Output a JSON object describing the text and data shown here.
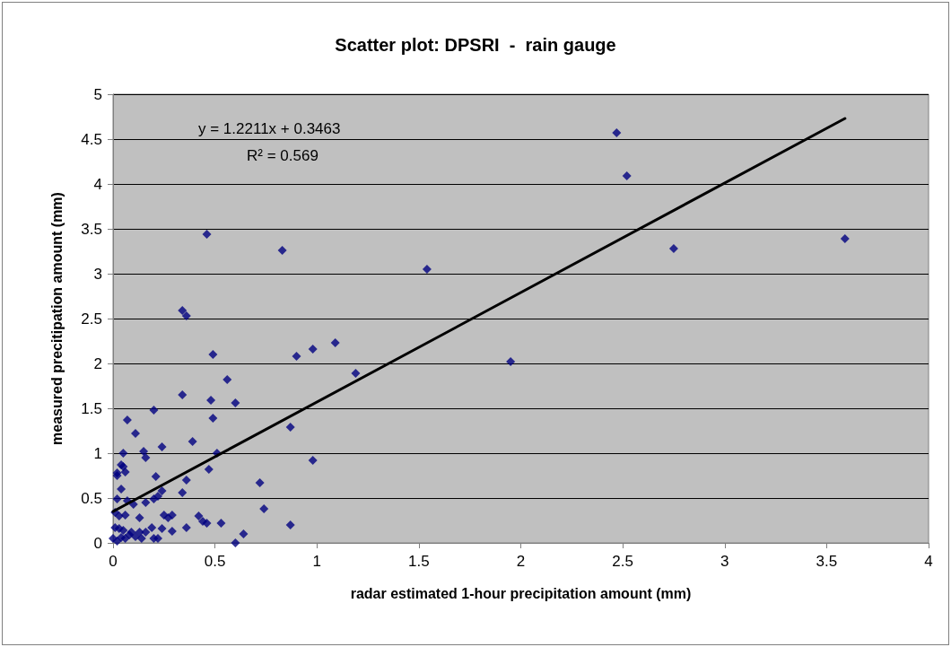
{
  "chart_data": {
    "type": "scatter",
    "title": "Scatter plot: DPSRI  -  rain gauge",
    "xlabel": "radar estimated 1-hour precipitation amount (mm)",
    "ylabel": "measured precitipation amount (mm)",
    "annotations": [
      "y = 1.2211x + 0.3463",
      "R² = 0.569"
    ],
    "xlim": [
      0,
      4
    ],
    "xticks": [
      0,
      0.5,
      1,
      1.5,
      2,
      2.5,
      3,
      3.5,
      4
    ],
    "ylim": [
      0,
      5
    ],
    "yticks": [
      0,
      0.5,
      1,
      1.5,
      2,
      2.5,
      3,
      3.5,
      4,
      4.5,
      5
    ],
    "grid": "y",
    "series": [
      {
        "color": "#000080",
        "marker": "diamond",
        "x": [
          2.47,
          2.52,
          2.75,
          3.59,
          1.54,
          1.95,
          0.46,
          0.83,
          0.34,
          0.36,
          0.49,
          0.9,
          0.98,
          1.09,
          1.19,
          0.56,
          0.34,
          0.48,
          0.6,
          0.2,
          0.49,
          0.07,
          0.11,
          0.87,
          0.39,
          0.24,
          0.15,
          0.05,
          0.51,
          0.98,
          0.16,
          0.04,
          0.02,
          0.06,
          0.47,
          0.21,
          0.72,
          0.36,
          0.04,
          0.24,
          0.34,
          0.02,
          0.07,
          0.1,
          0.16,
          0.2,
          0.22,
          0.74,
          0.01,
          0.03,
          0.06,
          0.13,
          0.25,
          0.29,
          0.42,
          0.44,
          0.46,
          0.53,
          0.36,
          0.27,
          0.01,
          0.03,
          0.05,
          0.09,
          0.13,
          0.16,
          0.19,
          0.24,
          0.29,
          0.87,
          0.64,
          0.6,
          0.0,
          0.02,
          0.04,
          0.06,
          0.08,
          0.11,
          0.14,
          0.2,
          0.22,
          0.02,
          0.05
        ],
        "values": [
          4.57,
          4.09,
          3.28,
          3.39,
          3.05,
          2.02,
          3.44,
          3.26,
          2.59,
          2.53,
          2.1,
          2.08,
          2.16,
          2.23,
          1.89,
          1.82,
          1.65,
          1.59,
          1.56,
          1.48,
          1.39,
          1.37,
          1.22,
          1.29,
          1.13,
          1.07,
          1.02,
          1.0,
          1.0,
          0.92,
          0.95,
          0.87,
          0.78,
          0.79,
          0.82,
          0.74,
          0.67,
          0.7,
          0.6,
          0.58,
          0.56,
          0.49,
          0.47,
          0.43,
          0.45,
          0.49,
          0.52,
          0.38,
          0.34,
          0.3,
          0.31,
          0.28,
          0.31,
          0.31,
          0.3,
          0.24,
          0.22,
          0.22,
          0.17,
          0.28,
          0.17,
          0.16,
          0.14,
          0.12,
          0.12,
          0.12,
          0.17,
          0.16,
          0.13,
          0.2,
          0.1,
          0.0,
          0.05,
          0.02,
          0.06,
          0.05,
          0.09,
          0.07,
          0.05,
          0.05,
          0.05,
          0.75,
          0.85
        ]
      },
      {
        "type": "line",
        "color": "#000000",
        "marker": "none",
        "line_style": "solid",
        "x": [
          0,
          3.59
        ],
        "values": [
          0.35,
          4.73
        ]
      }
    ]
  }
}
